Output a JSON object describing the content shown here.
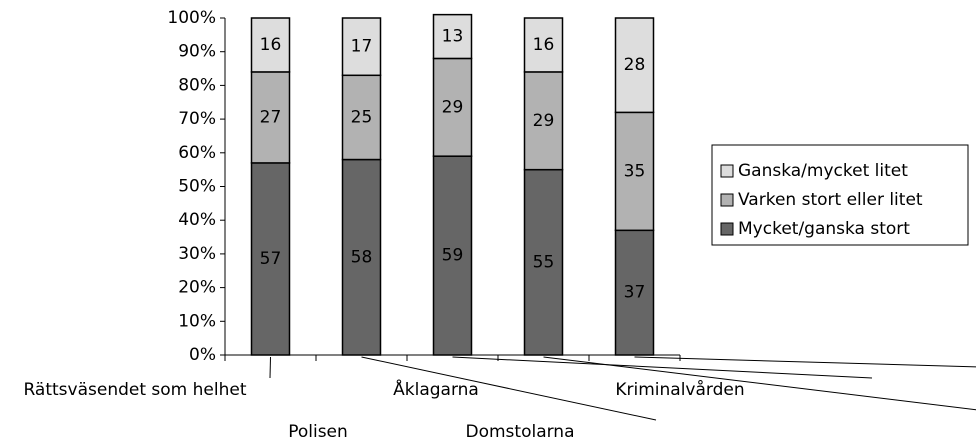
{
  "chart_data": {
    "type": "stacked_bar",
    "categories": [
      "Rättsväsendet som helhet",
      "Polisen",
      "Åklagarna",
      "Domstolarna",
      "Kriminalvården"
    ],
    "series": [
      {
        "name": "Mycket/ganska stort",
        "color": "#666666",
        "values": [
          57,
          58,
          59,
          55,
          37
        ]
      },
      {
        "name": "Varken stort eller litet",
        "color": "#b2b2b2",
        "values": [
          27,
          25,
          29,
          29,
          35
        ]
      },
      {
        "name": "Ganska/mycket litet",
        "color": "#dddddd",
        "values": [
          16,
          17,
          13,
          16,
          28
        ]
      }
    ],
    "ylim": [
      0,
      100
    ],
    "yticks": [
      {
        "value": 0,
        "label": "0%"
      },
      {
        "value": 10,
        "label": "10%"
      },
      {
        "value": 20,
        "label": "20%"
      },
      {
        "value": 30,
        "label": "30%"
      },
      {
        "value": 40,
        "label": "40%"
      },
      {
        "value": 50,
        "label": "50%"
      },
      {
        "value": 60,
        "label": "60%"
      },
      {
        "value": 70,
        "label": "70%"
      },
      {
        "value": 80,
        "label": "80%"
      },
      {
        "value": 90,
        "label": "90%"
      },
      {
        "value": 100,
        "label": "100%"
      }
    ],
    "grid": false,
    "legend": "right"
  }
}
